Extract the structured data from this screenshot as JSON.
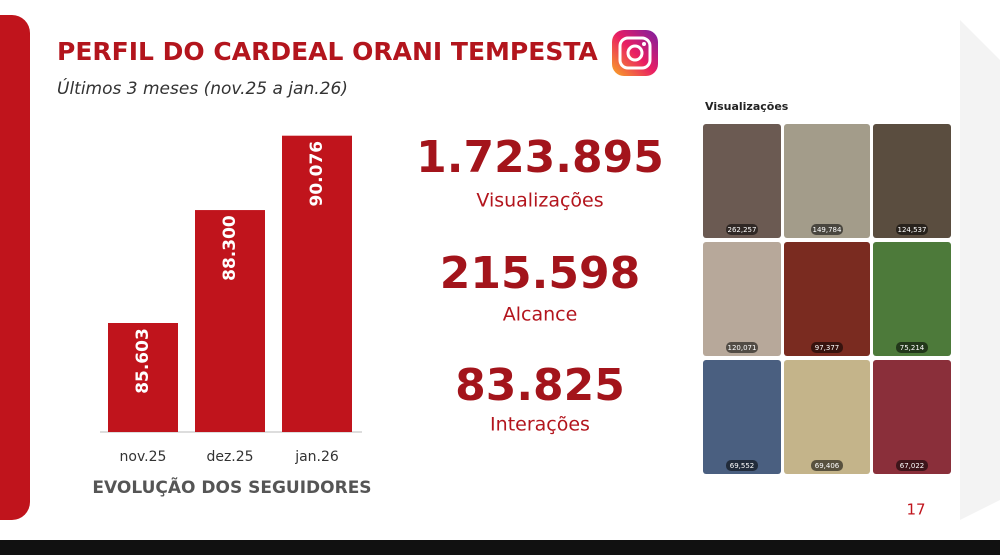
{
  "header": {
    "title": "PERFIL DO CARDEAL ORANI TEMPESTA",
    "subtitle": "Últimos 3 meses (nov.25 a jan.26)"
  },
  "chart_data": {
    "type": "bar",
    "title": "EVOLUÇÃO DOS SEGUIDORES",
    "categories": [
      "nov.25",
      "dez.25",
      "jan.26"
    ],
    "values": [
      85603,
      88300,
      90076
    ],
    "value_labels": [
      "85.603",
      "88.300",
      "90.076"
    ],
    "color": "#c0141c",
    "ylim": [
      83000,
      91000
    ]
  },
  "stats": [
    {
      "value": "1.723.895",
      "label": "Visualizações"
    },
    {
      "value": "215.598",
      "label": "Alcance"
    },
    {
      "value": "83.825",
      "label": "Interações"
    }
  ],
  "gallery": {
    "title": "Visualizações",
    "items": [
      "262,257",
      "149,784",
      "124,537",
      "120,071",
      "97,377",
      "75,214",
      "69,552",
      "69,406",
      "67,022"
    ]
  },
  "page_number": "17"
}
